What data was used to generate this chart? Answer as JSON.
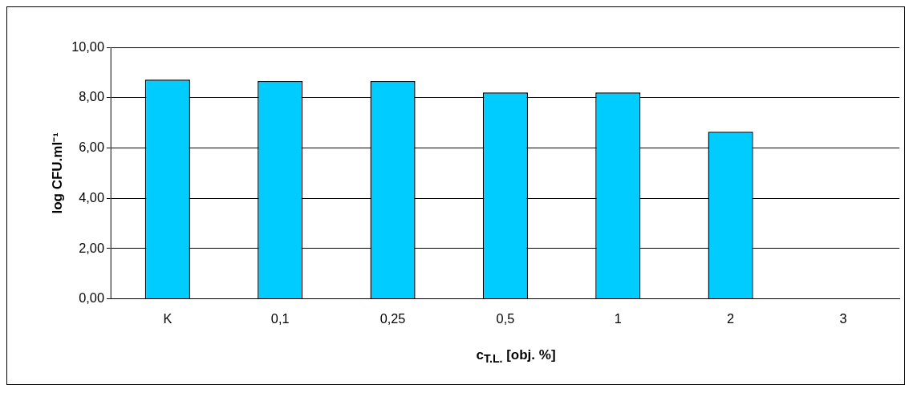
{
  "chart_data": {
    "type": "bar",
    "xlabel": "c$_{T.L.}$ [obj. %]",
    "ylabel": "log CFU.ml⁻¹",
    "categories": [
      "K",
      "0,1",
      "0,25",
      "0,5",
      "1",
      "2",
      "3"
    ],
    "values": [
      8.72,
      8.66,
      8.66,
      8.21,
      8.21,
      6.64,
      0
    ],
    "color": "#00ccff",
    "ylim": [
      0,
      10
    ],
    "yticks": [
      {
        "value": 0,
        "label": "0,00"
      },
      {
        "value": 2,
        "label": "2,00"
      },
      {
        "value": 4,
        "label": "4,00"
      },
      {
        "value": 6,
        "label": "6,00"
      },
      {
        "value": 8,
        "label": "8,00"
      },
      {
        "value": 10,
        "label": "10,00"
      }
    ],
    "grid": "y",
    "legend": false
  }
}
